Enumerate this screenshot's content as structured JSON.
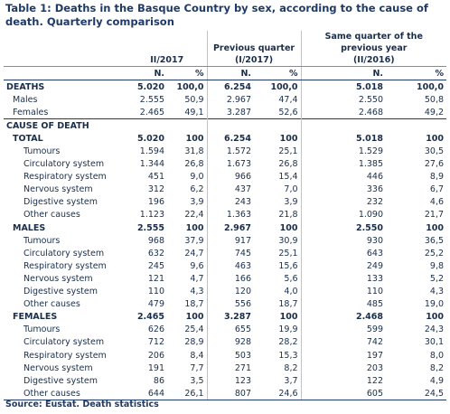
{
  "title": "Table 1: Deaths in the Basque Country by sex, according to the cause of death. Quarterly comparison",
  "headers": {
    "period1": "II/2017",
    "period2": "Previous quarter\n(I/2017)",
    "period3": "Same quarter of the\nprevious year\n(II/2016)",
    "n_label": "N.",
    "pct_label": "%"
  },
  "rows": [
    {
      "label": "DEATHS",
      "n1": "5.020",
      "p1": "100,0",
      "n2": "6.254",
      "p2": "100,0",
      "n3": "5.018",
      "p3": "100,0",
      "style": "bold",
      "indent": "lvl1"
    },
    {
      "label": "Males",
      "n1": "2.555",
      "p1": "50,9",
      "n2": "2.967",
      "p2": "47,4",
      "n3": "2.550",
      "p3": "50,8",
      "style": "",
      "indent": "lvl2"
    },
    {
      "label": "Females",
      "n1": "2.465",
      "p1": "49,1",
      "n2": "3.287",
      "p2": "52,6",
      "n3": "2.468",
      "p3": "49,2",
      "style": "",
      "indent": "lvl2"
    },
    {
      "label": "CAUSE OF DEATH",
      "n1": "",
      "p1": "",
      "n2": "",
      "p2": "",
      "n3": "",
      "p3": "",
      "style": "bold rule",
      "indent": "lvl1"
    },
    {
      "label": "TOTAL",
      "n1": "5.020",
      "p1": "100",
      "n2": "6.254",
      "p2": "100",
      "n3": "5.018",
      "p3": "100",
      "style": "bold",
      "indent": "lvl2"
    },
    {
      "label": "Tumours",
      "n1": "1.594",
      "p1": "31,8",
      "n2": "1.572",
      "p2": "25,1",
      "n3": "1.529",
      "p3": "30,5",
      "style": "",
      "indent": "lvl3"
    },
    {
      "label": "Circulatory system",
      "n1": "1.344",
      "p1": "26,8",
      "n2": "1.673",
      "p2": "26,8",
      "n3": "1.385",
      "p3": "27,6",
      "style": "",
      "indent": "lvl3"
    },
    {
      "label": "Respiratory system",
      "n1": "451",
      "p1": "9,0",
      "n2": "966",
      "p2": "15,4",
      "n3": "446",
      "p3": "8,9",
      "style": "",
      "indent": "lvl3"
    },
    {
      "label": "Nervous system",
      "n1": "312",
      "p1": "6,2",
      "n2": "437",
      "p2": "7,0",
      "n3": "336",
      "p3": "6,7",
      "style": "",
      "indent": "lvl3"
    },
    {
      "label": "Digestive system",
      "n1": "196",
      "p1": "3,9",
      "n2": "243",
      "p2": "3,9",
      "n3": "232",
      "p3": "4,6",
      "style": "",
      "indent": "lvl3"
    },
    {
      "label": "Other causes",
      "n1": "1.123",
      "p1": "22,4",
      "n2": "1.363",
      "p2": "21,8",
      "n3": "1.090",
      "p3": "21,7",
      "style": "",
      "indent": "lvl3"
    },
    {
      "label": "MALES",
      "n1": "2.555",
      "p1": "100",
      "n2": "2.967",
      "p2": "100",
      "n3": "2.550",
      "p3": "100",
      "style": "bold",
      "indent": "lvl2"
    },
    {
      "label": "Tumours",
      "n1": "968",
      "p1": "37,9",
      "n2": "917",
      "p2": "30,9",
      "n3": "930",
      "p3": "36,5",
      "style": "",
      "indent": "lvl3"
    },
    {
      "label": "Circulatory system",
      "n1": "632",
      "p1": "24,7",
      "n2": "745",
      "p2": "25,1",
      "n3": "643",
      "p3": "25,2",
      "style": "",
      "indent": "lvl3"
    },
    {
      "label": "Respiratory system",
      "n1": "245",
      "p1": "9,6",
      "n2": "463",
      "p2": "15,6",
      "n3": "249",
      "p3": "9,8",
      "style": "",
      "indent": "lvl3"
    },
    {
      "label": "Nervous system",
      "n1": "121",
      "p1": "4,7",
      "n2": "166",
      "p2": "5,6",
      "n3": "133",
      "p3": "5,2",
      "style": "",
      "indent": "lvl3"
    },
    {
      "label": "Digestive system",
      "n1": "110",
      "p1": "4,3",
      "n2": "120",
      "p2": "4,0",
      "n3": "110",
      "p3": "4,3",
      "style": "",
      "indent": "lvl3"
    },
    {
      "label": "Other causes",
      "n1": "479",
      "p1": "18,7",
      "n2": "556",
      "p2": "18,7",
      "n3": "485",
      "p3": "19,0",
      "style": "",
      "indent": "lvl3"
    },
    {
      "label": "FEMALES",
      "n1": "2.465",
      "p1": "100",
      "n2": "3.287",
      "p2": "100",
      "n3": "2.468",
      "p3": "100",
      "style": "bold",
      "indent": "lvl2"
    },
    {
      "label": "Tumours",
      "n1": "626",
      "p1": "25,4",
      "n2": "655",
      "p2": "19,9",
      "n3": "599",
      "p3": "24,3",
      "style": "",
      "indent": "lvl3"
    },
    {
      "label": "Circulatory system",
      "n1": "712",
      "p1": "28,9",
      "n2": "928",
      "p2": "28,2",
      "n3": "742",
      "p3": "30,1",
      "style": "",
      "indent": "lvl3"
    },
    {
      "label": "Respiratory system",
      "n1": "206",
      "p1": "8,4",
      "n2": "503",
      "p2": "15,3",
      "n3": "197",
      "p3": "8,0",
      "style": "",
      "indent": "lvl3"
    },
    {
      "label": "Nervous system",
      "n1": "191",
      "p1": "7,7",
      "n2": "271",
      "p2": "8,2",
      "n3": "203",
      "p3": "8,2",
      "style": "",
      "indent": "lvl3"
    },
    {
      "label": "Digestive system",
      "n1": "86",
      "p1": "3,5",
      "n2": "123",
      "p2": "3,7",
      "n3": "122",
      "p3": "4,9",
      "style": "",
      "indent": "lvl3"
    },
    {
      "label": "Other causes",
      "n1": "644",
      "p1": "26,1",
      "n2": "807",
      "p2": "24,6",
      "n3": "605",
      "p3": "24,5",
      "style": "bottom",
      "indent": "lvl3"
    }
  ],
  "source": "Source: Eustat. Death statistics"
}
